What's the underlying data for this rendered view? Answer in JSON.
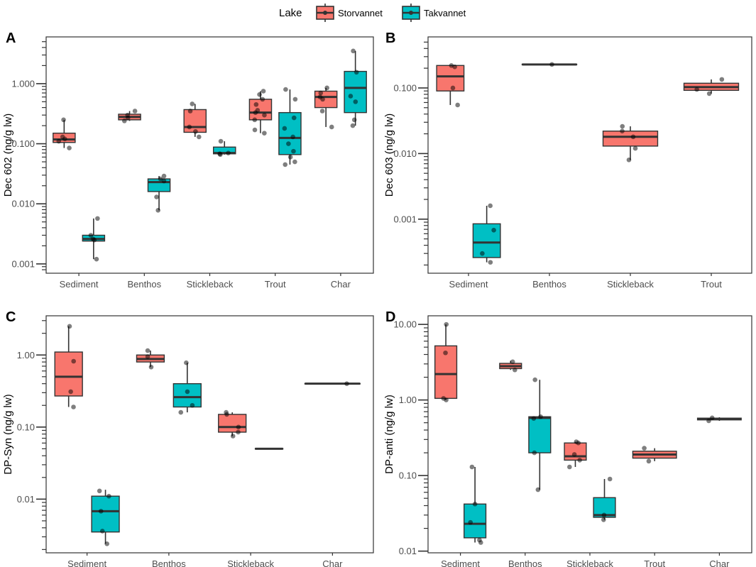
{
  "legend": {
    "title": "Lake",
    "entries": [
      {
        "name": "Storvannet",
        "color": "#F8766D"
      },
      {
        "name": "Takvannet",
        "color": "#00BFC4"
      }
    ]
  },
  "chart_data": [
    {
      "panel": "A",
      "type": "boxplot",
      "scale": "log10",
      "ylabel": "Dec 602 (ng/g lw)",
      "ylim": [
        0.0007,
        6
      ],
      "yticks": [
        {
          "v": 0.001,
          "label": "0.001"
        },
        {
          "v": 0.01,
          "label": "0.010"
        },
        {
          "v": 0.1,
          "label": "0.100"
        },
        {
          "v": 1,
          "label": "1.000"
        }
      ],
      "categories": [
        "Sediment",
        "Benthos",
        "Stickleback",
        "Trout",
        "Char"
      ],
      "boxes": [
        {
          "category": "Sediment",
          "lake": "Storvannet",
          "min": 0.085,
          "q1": 0.105,
          "median": 0.118,
          "q3": 0.15,
          "max": 0.25,
          "points": [
            0.085,
            0.11,
            0.12,
            0.13,
            0.25
          ]
        },
        {
          "category": "Sediment",
          "lake": "Takvannet",
          "min": 0.0012,
          "q1": 0.0024,
          "median": 0.0026,
          "q3": 0.003,
          "max": 0.0057,
          "points": [
            0.0012,
            0.0025,
            0.0026,
            0.003,
            0.0057
          ]
        },
        {
          "category": "Benthos",
          "lake": "Storvannet",
          "min": 0.24,
          "q1": 0.25,
          "median": 0.28,
          "q3": 0.31,
          "max": 0.35,
          "points": [
            0.24,
            0.27,
            0.3,
            0.35
          ]
        },
        {
          "category": "Benthos",
          "lake": "Takvannet",
          "min": 0.0078,
          "q1": 0.016,
          "median": 0.023,
          "q3": 0.026,
          "max": 0.029,
          "points": [
            0.0078,
            0.013,
            0.024,
            0.026,
            0.029
          ]
        },
        {
          "category": "Stickleback",
          "lake": "Storvannet",
          "min": 0.13,
          "q1": 0.155,
          "median": 0.19,
          "q3": 0.37,
          "max": 0.46,
          "points": [
            0.13,
            0.16,
            0.19,
            0.35,
            0.46
          ]
        },
        {
          "category": "Stickleback",
          "lake": "Takvannet",
          "min": 0.066,
          "q1": 0.068,
          "median": 0.07,
          "q3": 0.088,
          "max": 0.11,
          "points": [
            0.066,
            0.068,
            0.07,
            0.11
          ]
        },
        {
          "category": "Trout",
          "lake": "Storvannet",
          "min": 0.15,
          "q1": 0.25,
          "median": 0.33,
          "q3": 0.55,
          "max": 0.75,
          "points": [
            0.15,
            0.17,
            0.25,
            0.3,
            0.33,
            0.36,
            0.45,
            0.55,
            0.66,
            0.75
          ]
        },
        {
          "category": "Trout",
          "lake": "Takvannet",
          "min": 0.045,
          "q1": 0.066,
          "median": 0.125,
          "q3": 0.33,
          "max": 0.8,
          "points": [
            0.045,
            0.05,
            0.06,
            0.075,
            0.1,
            0.13,
            0.18,
            0.27,
            0.55,
            0.8
          ]
        },
        {
          "category": "Char",
          "lake": "Storvannet",
          "min": 0.19,
          "q1": 0.4,
          "median": 0.6,
          "q3": 0.75,
          "max": 0.85,
          "points": [
            0.19,
            0.35,
            0.55,
            0.6,
            0.7,
            0.85
          ]
        },
        {
          "category": "Char",
          "lake": "Takvannet",
          "min": 0.2,
          "q1": 0.33,
          "median": 0.85,
          "q3": 1.6,
          "max": 3.5,
          "points": [
            0.2,
            0.25,
            0.5,
            0.62,
            1.55,
            3.5
          ]
        }
      ]
    },
    {
      "panel": "B",
      "type": "boxplot",
      "scale": "log10",
      "ylabel": "Dec 603 (ng/g lw)",
      "ylim": [
        0.00015,
        0.6
      ],
      "yticks": [
        {
          "v": 0.001,
          "label": "0.001"
        },
        {
          "v": 0.01,
          "label": "0.010"
        },
        {
          "v": 0.1,
          "label": "0.100"
        }
      ],
      "categories": [
        "Sediment",
        "Benthos",
        "Stickleback",
        "Trout"
      ],
      "boxes": [
        {
          "category": "Sediment",
          "lake": "Storvannet",
          "min": 0.055,
          "q1": 0.09,
          "median": 0.15,
          "q3": 0.22,
          "max": 0.22,
          "points": [
            0.055,
            0.1,
            0.21,
            0.22
          ]
        },
        {
          "category": "Sediment",
          "lake": "Takvannet",
          "min": 0.00022,
          "q1": 0.00026,
          "median": 0.00044,
          "q3": 0.00085,
          "max": 0.0016,
          "points": [
            0.00022,
            0.0003,
            0.00068,
            0.0016
          ]
        },
        {
          "category": "Benthos",
          "lake": "Storvannet",
          "min": 0.225,
          "q1": 0.226,
          "median": 0.228,
          "q3": 0.23,
          "max": 0.232,
          "points": [
            0.228
          ]
        },
        {
          "category": "Stickleback",
          "lake": "Storvannet",
          "min": 0.008,
          "q1": 0.013,
          "median": 0.018,
          "q3": 0.022,
          "max": 0.026,
          "points": [
            0.008,
            0.012,
            0.018,
            0.022,
            0.026
          ]
        },
        {
          "category": "Trout",
          "lake": "Storvannet",
          "min": 0.082,
          "q1": 0.092,
          "median": 0.103,
          "q3": 0.118,
          "max": 0.135,
          "points": [
            0.082,
            0.095,
            0.135
          ]
        }
      ]
    },
    {
      "panel": "C",
      "type": "boxplot",
      "scale": "log10",
      "ylabel": "DP-Syn (ng/g lw)",
      "ylim": [
        0.0018,
        3.5
      ],
      "yticks": [
        {
          "v": 0.01,
          "label": "0.01"
        },
        {
          "v": 0.1,
          "label": "0.10"
        },
        {
          "v": 1,
          "label": "1.00"
        }
      ],
      "categories": [
        "Sediment",
        "Benthos",
        "Stickleback",
        "Char"
      ],
      "boxes": [
        {
          "category": "Sediment",
          "lake": "Storvannet",
          "min": 0.19,
          "q1": 0.27,
          "median": 0.5,
          "q3": 1.1,
          "max": 2.5,
          "points": [
            0.19,
            0.31,
            0.82,
            2.5
          ]
        },
        {
          "category": "Sediment",
          "lake": "Takvannet",
          "min": 0.0024,
          "q1": 0.0035,
          "median": 0.0068,
          "q3": 0.011,
          "max": 0.0135,
          "points": [
            0.0024,
            0.0036,
            0.0068,
            0.011,
            0.013
          ]
        },
        {
          "category": "Benthos",
          "lake": "Storvannet",
          "min": 0.68,
          "q1": 0.8,
          "median": 0.88,
          "q3": 1.0,
          "max": 1.15,
          "points": [
            0.68,
            0.95,
            1.15
          ]
        },
        {
          "category": "Benthos",
          "lake": "Takvannet",
          "min": 0.16,
          "q1": 0.19,
          "median": 0.26,
          "q3": 0.4,
          "max": 0.78,
          "points": [
            0.16,
            0.2,
            0.31,
            0.78
          ]
        },
        {
          "category": "Stickleback",
          "lake": "Storvannet",
          "min": 0.075,
          "q1": 0.085,
          "median": 0.1,
          "q3": 0.15,
          "max": 0.16,
          "points": [
            0.075,
            0.085,
            0.1,
            0.15,
            0.16
          ]
        },
        {
          "category": "Stickleback",
          "lake": "Takvannet",
          "min": 0.049,
          "q1": 0.0495,
          "median": 0.05,
          "q3": 0.0505,
          "max": 0.051,
          "points": []
        },
        {
          "category": "Char",
          "lake": "Storvannet",
          "min": 0.395,
          "q1": 0.398,
          "median": 0.4,
          "q3": 0.402,
          "max": 0.405,
          "points": [
            0.4
          ]
        }
      ]
    },
    {
      "panel": "D",
      "type": "boxplot",
      "scale": "log10",
      "ylabel": "DP-anti (ng/g lw)",
      "ylim": [
        0.0095,
        13
      ],
      "yticks": [
        {
          "v": 0.01,
          "label": "0.01"
        },
        {
          "v": 0.1,
          "label": "0.10"
        },
        {
          "v": 1,
          "label": "1.00"
        },
        {
          "v": 10,
          "label": "10.00"
        }
      ],
      "categories": [
        "Sediment",
        "Benthos",
        "Stickleback",
        "Trout",
        "Char"
      ],
      "boxes": [
        {
          "category": "Sediment",
          "lake": "Storvannet",
          "min": 1.0,
          "q1": 1.05,
          "median": 2.2,
          "q3": 5.2,
          "max": 10.0,
          "points": [
            1.0,
            1.05,
            4.2,
            10.0
          ]
        },
        {
          "category": "Sediment",
          "lake": "Takvannet",
          "min": 0.013,
          "q1": 0.015,
          "median": 0.023,
          "q3": 0.042,
          "max": 0.13,
          "points": [
            0.013,
            0.014,
            0.024,
            0.042,
            0.13
          ]
        },
        {
          "category": "Benthos",
          "lake": "Storvannet",
          "min": 2.5,
          "q1": 2.6,
          "median": 2.8,
          "q3": 3.05,
          "max": 3.3,
          "points": [
            2.5,
            3.2
          ]
        },
        {
          "category": "Benthos",
          "lake": "Takvannet",
          "min": 0.065,
          "q1": 0.2,
          "median": 0.58,
          "q3": 0.6,
          "max": 1.85,
          "points": [
            0.065,
            0.2,
            0.57,
            0.6,
            1.85
          ]
        },
        {
          "category": "Stickleback",
          "lake": "Storvannet",
          "min": 0.13,
          "q1": 0.16,
          "median": 0.18,
          "q3": 0.27,
          "max": 0.28,
          "points": [
            0.13,
            0.16,
            0.19,
            0.27,
            0.28
          ]
        },
        {
          "category": "Stickleback",
          "lake": "Takvannet",
          "min": 0.026,
          "q1": 0.028,
          "median": 0.03,
          "q3": 0.051,
          "max": 0.09,
          "points": [
            0.026,
            0.03,
            0.09
          ]
        },
        {
          "category": "Trout",
          "lake": "Storvannet",
          "min": 0.155,
          "q1": 0.17,
          "median": 0.19,
          "q3": 0.21,
          "max": 0.23,
          "points": [
            0.155,
            0.23
          ]
        },
        {
          "category": "Char",
          "lake": "Storvannet",
          "min": 0.53,
          "q1": 0.545,
          "median": 0.56,
          "q3": 0.575,
          "max": 0.59,
          "points": [
            0.53,
            0.58
          ]
        }
      ]
    }
  ]
}
